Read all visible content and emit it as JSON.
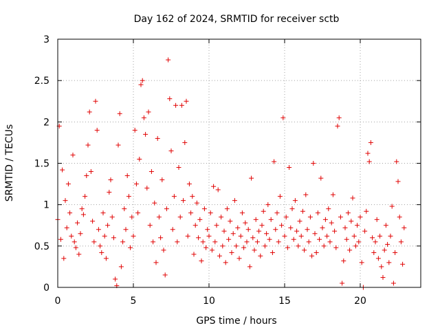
{
  "chart_data": {
    "type": "scatter",
    "title": "Day 162 of 2024, SRMTID for receiver sctb",
    "xlabel": "GPS time / hours",
    "ylabel": "SRMTID / TECUs",
    "xlim": [
      0,
      24
    ],
    "ylim": [
      0,
      3
    ],
    "xticks": [
      0,
      5,
      10,
      15,
      20
    ],
    "xtick_labels": [
      "0",
      "5",
      "10",
      "15",
      "20"
    ],
    "yticks": [
      0,
      0.5,
      1,
      1.5,
      2,
      2.5,
      3
    ],
    "ytick_labels": [
      "0",
      "0.5",
      "1",
      "1.5",
      "2",
      "2.5",
      "3"
    ],
    "grid": true,
    "marker": "+",
    "series": [
      {
        "name": "SRMTID",
        "color": "#e00000",
        "points": [
          [
            0.0,
            0.82
          ],
          [
            0.1,
            1.95
          ],
          [
            0.2,
            0.58
          ],
          [
            0.3,
            1.42
          ],
          [
            0.4,
            0.35
          ],
          [
            0.5,
            1.05
          ],
          [
            0.6,
            0.72
          ],
          [
            0.7,
            1.25
          ],
          [
            0.8,
            0.9
          ],
          [
            0.9,
            0.62
          ],
          [
            1.0,
            1.6
          ],
          [
            1.1,
            0.55
          ],
          [
            1.2,
            0.48
          ],
          [
            1.3,
            0.78
          ],
          [
            1.4,
            0.4
          ],
          [
            1.5,
            0.65
          ],
          [
            1.6,
            0.95
          ],
          [
            1.7,
            0.88
          ],
          [
            1.8,
            1.1
          ],
          [
            1.9,
            1.35
          ],
          [
            2.0,
            1.72
          ],
          [
            2.1,
            2.12
          ],
          [
            2.2,
            1.4
          ],
          [
            2.3,
            0.8
          ],
          [
            2.4,
            0.55
          ],
          [
            2.5,
            2.25
          ],
          [
            2.6,
            1.9
          ],
          [
            2.7,
            0.7
          ],
          [
            2.8,
            0.5
          ],
          [
            2.9,
            0.42
          ],
          [
            3.0,
            0.9
          ],
          [
            3.1,
            0.62
          ],
          [
            3.2,
            0.35
          ],
          [
            3.3,
            0.75
          ],
          [
            3.4,
            1.15
          ],
          [
            3.5,
            1.3
          ],
          [
            3.6,
            0.85
          ],
          [
            3.7,
            0.6
          ],
          [
            3.8,
            0.1
          ],
          [
            3.9,
            0.02
          ],
          [
            4.0,
            1.72
          ],
          [
            4.1,
            2.1
          ],
          [
            4.2,
            0.25
          ],
          [
            4.3,
            0.55
          ],
          [
            4.4,
            0.95
          ],
          [
            4.5,
            0.7
          ],
          [
            4.6,
            1.35
          ],
          [
            4.7,
            1.1
          ],
          [
            4.8,
            0.48
          ],
          [
            4.9,
            0.85
          ],
          [
            5.0,
            0.62
          ],
          [
            5.1,
            1.9
          ],
          [
            5.2,
            1.25
          ],
          [
            5.3,
            0.9
          ],
          [
            5.4,
            1.55
          ],
          [
            5.5,
            2.45
          ],
          [
            5.6,
            2.5
          ],
          [
            5.7,
            2.05
          ],
          [
            5.8,
            1.85
          ],
          [
            5.9,
            1.2
          ],
          [
            6.0,
            2.12
          ],
          [
            6.1,
            0.75
          ],
          [
            6.2,
            1.4
          ],
          [
            6.3,
            0.55
          ],
          [
            6.4,
            1.02
          ],
          [
            6.5,
            0.3
          ],
          [
            6.6,
            1.8
          ],
          [
            6.7,
            0.85
          ],
          [
            6.8,
            0.6
          ],
          [
            6.9,
            1.3
          ],
          [
            7.0,
            0.45
          ],
          [
            7.1,
            0.15
          ],
          [
            7.2,
            0.95
          ],
          [
            7.3,
            2.75
          ],
          [
            7.4,
            2.28
          ],
          [
            7.5,
            1.65
          ],
          [
            7.6,
            0.7
          ],
          [
            7.7,
            1.1
          ],
          [
            7.8,
            2.2
          ],
          [
            7.9,
            0.55
          ],
          [
            8.0,
            1.45
          ],
          [
            8.1,
            0.85
          ],
          [
            8.2,
            2.2
          ],
          [
            8.3,
            1.05
          ],
          [
            8.4,
            1.75
          ],
          [
            8.5,
            2.25
          ],
          [
            8.6,
            0.62
          ],
          [
            8.7,
            1.25
          ],
          [
            8.8,
            0.9
          ],
          [
            8.9,
            1.1
          ],
          [
            9.0,
            0.4
          ],
          [
            9.1,
            0.75
          ],
          [
            9.2,
            1.02
          ],
          [
            9.3,
            0.6
          ],
          [
            9.4,
            0.82
          ],
          [
            9.5,
            0.32
          ],
          [
            9.6,
            0.55
          ],
          [
            9.7,
            0.95
          ],
          [
            9.8,
            0.48
          ],
          [
            9.9,
            0.7
          ],
          [
            10.0,
            0.62
          ],
          [
            10.1,
            0.9
          ],
          [
            10.2,
            0.45
          ],
          [
            10.3,
            1.22
          ],
          [
            10.4,
            0.55
          ],
          [
            10.5,
            0.75
          ],
          [
            10.6,
            1.18
          ],
          [
            10.7,
            0.38
          ],
          [
            10.8,
            0.85
          ],
          [
            10.9,
            0.5
          ],
          [
            11.0,
            0.68
          ],
          [
            11.1,
            0.3
          ],
          [
            11.2,
            0.95
          ],
          [
            11.3,
            0.58
          ],
          [
            11.4,
            0.8
          ],
          [
            11.5,
            0.42
          ],
          [
            11.6,
            0.65
          ],
          [
            11.7,
            1.05
          ],
          [
            11.8,
            0.5
          ],
          [
            11.9,
            0.72
          ],
          [
            12.0,
            0.35
          ],
          [
            12.1,
            0.62
          ],
          [
            12.2,
            0.9
          ],
          [
            12.3,
            0.48
          ],
          [
            12.4,
            0.78
          ],
          [
            12.5,
            0.55
          ],
          [
            12.6,
            0.7
          ],
          [
            12.7,
            0.25
          ],
          [
            12.8,
            1.32
          ],
          [
            12.9,
            0.6
          ],
          [
            13.0,
            0.45
          ],
          [
            13.1,
            0.82
          ],
          [
            13.2,
            0.55
          ],
          [
            13.3,
            0.68
          ],
          [
            13.4,
            0.38
          ],
          [
            13.5,
            0.75
          ],
          [
            13.6,
            0.92
          ],
          [
            13.7,
            0.5
          ],
          [
            13.8,
            0.65
          ],
          [
            13.9,
            1.0
          ],
          [
            14.0,
            0.58
          ],
          [
            14.1,
            0.82
          ],
          [
            14.2,
            0.42
          ],
          [
            14.3,
            1.52
          ],
          [
            14.4,
            0.7
          ],
          [
            14.5,
            0.9
          ],
          [
            14.6,
            0.55
          ],
          [
            14.7,
            1.1
          ],
          [
            14.8,
            0.75
          ],
          [
            14.9,
            2.05
          ],
          [
            15.0,
            0.62
          ],
          [
            15.1,
            0.85
          ],
          [
            15.2,
            0.48
          ],
          [
            15.3,
            1.45
          ],
          [
            15.4,
            0.72
          ],
          [
            15.5,
            0.95
          ],
          [
            15.6,
            0.58
          ],
          [
            15.7,
            1.05
          ],
          [
            15.8,
            0.68
          ],
          [
            15.9,
            0.5
          ],
          [
            16.0,
            0.8
          ],
          [
            16.1,
            0.62
          ],
          [
            16.2,
            0.92
          ],
          [
            16.3,
            0.45
          ],
          [
            16.4,
            1.12
          ],
          [
            16.5,
            0.7
          ],
          [
            16.6,
            0.55
          ],
          [
            16.7,
            0.85
          ],
          [
            16.8,
            0.38
          ],
          [
            16.9,
            1.5
          ],
          [
            17.0,
            0.65
          ],
          [
            17.1,
            0.42
          ],
          [
            17.2,
            0.9
          ],
          [
            17.3,
            0.58
          ],
          [
            17.4,
            1.32
          ],
          [
            17.5,
            0.72
          ],
          [
            17.6,
            0.5
          ],
          [
            17.7,
            0.82
          ],
          [
            17.8,
            0.62
          ],
          [
            17.9,
            0.95
          ],
          [
            18.0,
            0.55
          ],
          [
            18.1,
            0.78
          ],
          [
            18.2,
            1.12
          ],
          [
            18.3,
            0.68
          ],
          [
            18.4,
            0.48
          ],
          [
            18.5,
            1.95
          ],
          [
            18.6,
            2.05
          ],
          [
            18.7,
            0.85
          ],
          [
            18.8,
            0.05
          ],
          [
            18.9,
            0.32
          ],
          [
            19.0,
            0.72
          ],
          [
            19.1,
            0.58
          ],
          [
            19.2,
            0.9
          ],
          [
            19.3,
            0.45
          ],
          [
            19.4,
            0.8
          ],
          [
            19.5,
            1.08
          ],
          [
            19.6,
            0.62
          ],
          [
            19.7,
            0.5
          ],
          [
            19.8,
            0.75
          ],
          [
            19.9,
            0.55
          ],
          [
            20.0,
            0.85
          ],
          [
            20.1,
            0.3
          ],
          [
            20.2,
            0.0
          ],
          [
            20.3,
            0.68
          ],
          [
            20.4,
            0.92
          ],
          [
            20.5,
            1.62
          ],
          [
            20.6,
            1.52
          ],
          [
            20.7,
            1.75
          ],
          [
            20.8,
            0.6
          ],
          [
            20.9,
            0.42
          ],
          [
            21.0,
            0.55
          ],
          [
            21.1,
            0.82
          ],
          [
            21.2,
            0.35
          ],
          [
            21.3,
            0.62
          ],
          [
            21.4,
            0.25
          ],
          [
            21.5,
            0.12
          ],
          [
            21.6,
            0.45
          ],
          [
            21.7,
            0.75
          ],
          [
            21.8,
            0.52
          ],
          [
            21.9,
            0.3
          ],
          [
            22.0,
            0.62
          ],
          [
            22.1,
            0.98
          ],
          [
            22.2,
            0.05
          ],
          [
            22.3,
            0.42
          ],
          [
            22.4,
            1.52
          ],
          [
            22.5,
            1.28
          ],
          [
            22.6,
            0.85
          ],
          [
            22.7,
            0.55
          ],
          [
            22.8,
            0.28
          ],
          [
            22.9,
            0.72
          ]
        ]
      }
    ]
  }
}
